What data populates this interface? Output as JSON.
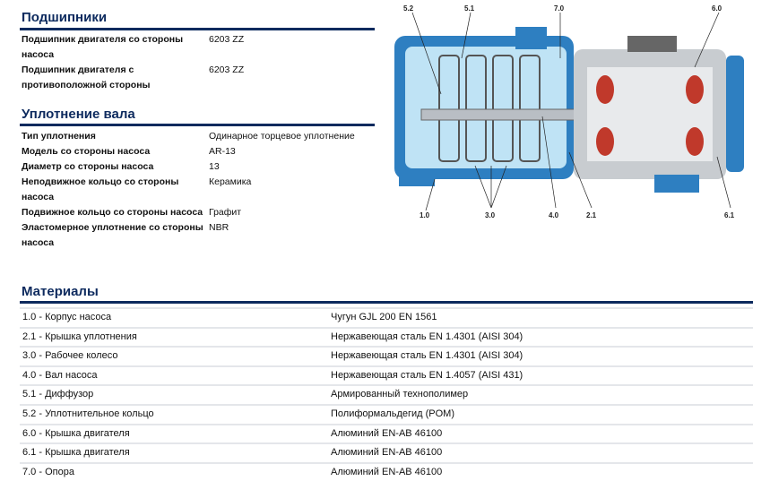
{
  "bearings": {
    "title": "Подшипники",
    "rows": [
      {
        "label": "Подшипник двигателя со стороны насоса",
        "value": "6203 ZZ"
      },
      {
        "label": "Подшипник двигателя с противоположной стороны",
        "value": "6203 ZZ"
      }
    ]
  },
  "shaft_seal": {
    "title": "Уплотнение вала",
    "rows": [
      {
        "label": "Тип уплотнения",
        "value": "Одинарное торцевое уплотнение"
      },
      {
        "label": "Модель со стороны насоса",
        "value": "AR-13"
      },
      {
        "label": "Диаметр со стороны насоса",
        "value": "13"
      },
      {
        "label": "Неподвижное кольцо со стороны насоса",
        "value": "Керамика"
      },
      {
        "label": "Подвижное кольцо со стороны насоса",
        "value": "Графит"
      },
      {
        "label": "Эластомерное уплотнение со стороны насоса",
        "value": "NBR"
      }
    ]
  },
  "materials": {
    "title": "Материалы",
    "rows": [
      {
        "part": "1.0 - Корпус насоса",
        "material": "Чугун GJL 200 EN 1561"
      },
      {
        "part": "2.1 - Крышка уплотнения",
        "material": "Нержавеющая сталь EN 1.4301 (AISI 304)"
      },
      {
        "part": "3.0 - Рабочее колесо",
        "material": "Нержавеющая сталь EN 1.4301 (AISI 304)"
      },
      {
        "part": "4.0 - Вал насоса",
        "material": "Нержавеющая сталь EN 1.4057 (AISI 431)"
      },
      {
        "part": "5.1 - Диффузор",
        "material": "Армированный технополимер"
      },
      {
        "part": "5.2 - Уплотнительное кольцо",
        "material": "Полиформальдегид (POM)"
      },
      {
        "part": "6.0 - Крышка двигателя",
        "material": "Алюминий EN-AB 46100"
      },
      {
        "part": "6.1 - Крышка двигателя",
        "material": "Алюминий EN-AB 46100"
      },
      {
        "part": "7.0 - Опора",
        "material": "Алюминий EN-AB 46100"
      }
    ]
  },
  "diagram": {
    "labels": [
      "5.2",
      "5.1",
      "7.0",
      "6.0",
      "1.0",
      "3.0",
      "4.0",
      "2.1",
      "6.1"
    ],
    "colors": {
      "body": "#2e7fc1",
      "water": "#bfe3f5",
      "motor": "#c8ccd0",
      "winding": "#c0392b"
    }
  }
}
